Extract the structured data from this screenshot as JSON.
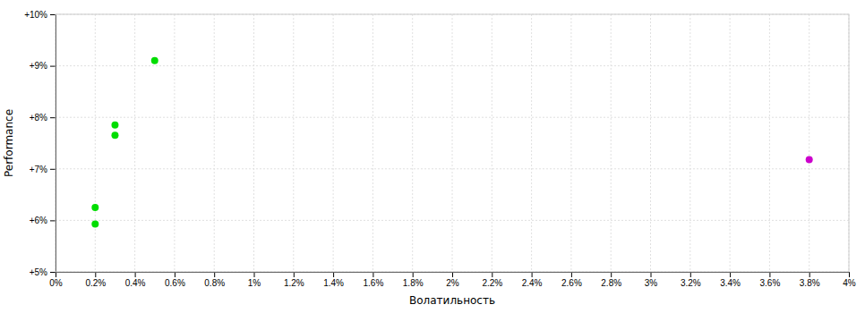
{
  "chart_data": {
    "type": "scatter",
    "xlabel": "Волатильность",
    "ylabel": "Performance",
    "series": [
      {
        "color": "#00dd00",
        "marker": "circle",
        "x": [
          0.002,
          0.002,
          0.003,
          0.003,
          0.005
        ],
        "values": [
          0.0593,
          0.0625,
          0.0785,
          0.0765,
          0.091
        ]
      },
      {
        "color": "#cc00cc",
        "marker": "circle",
        "x": [
          0.038
        ],
        "values": [
          0.0718
        ]
      }
    ],
    "xlim": [
      0.0,
      0.04
    ],
    "ylim": [
      0.05,
      0.1
    ],
    "xticks": [
      {
        "value": 0.0,
        "label": "0%"
      },
      {
        "value": 0.002,
        "label": "0.2%"
      },
      {
        "value": 0.004,
        "label": "0.4%"
      },
      {
        "value": 0.006,
        "label": "0.6%"
      },
      {
        "value": 0.008,
        "label": "0.8%"
      },
      {
        "value": 0.01,
        "label": "1%"
      },
      {
        "value": 0.012,
        "label": "1.2%"
      },
      {
        "value": 0.014,
        "label": "1.4%"
      },
      {
        "value": 0.016,
        "label": "1.6%"
      },
      {
        "value": 0.018,
        "label": "1.8%"
      },
      {
        "value": 0.02,
        "label": "2%"
      },
      {
        "value": 0.022,
        "label": "2.2%"
      },
      {
        "value": 0.024,
        "label": "2.4%"
      },
      {
        "value": 0.026,
        "label": "2.6%"
      },
      {
        "value": 0.028,
        "label": "2.8%"
      },
      {
        "value": 0.03,
        "label": "3%"
      },
      {
        "value": 0.032,
        "label": "3.2%"
      },
      {
        "value": 0.034,
        "label": "3.4%"
      },
      {
        "value": 0.036,
        "label": "3.6%"
      },
      {
        "value": 0.038,
        "label": "3.8%"
      },
      {
        "value": 0.04,
        "label": "4%"
      }
    ],
    "yticks": [
      {
        "value": 0.05,
        "label": "+5%"
      },
      {
        "value": 0.06,
        "label": "+6%"
      },
      {
        "value": 0.07,
        "label": "+7%"
      },
      {
        "value": 0.08,
        "label": "+8%"
      },
      {
        "value": 0.09,
        "label": "+9%"
      },
      {
        "value": 0.1,
        "label": "+10%"
      }
    ],
    "grid": true
  }
}
